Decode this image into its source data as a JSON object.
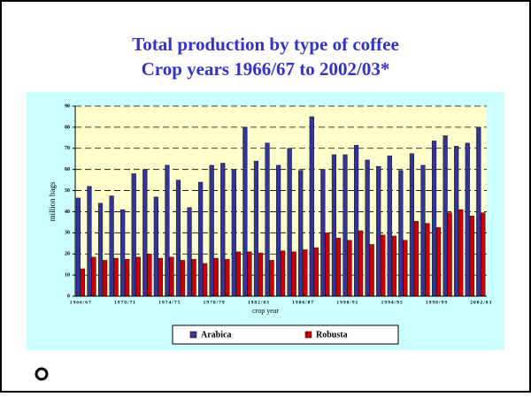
{
  "chart_data": {
    "type": "bar",
    "title": "Total production by type of coffee",
    "subtitle": "Crop years 1966/67 to 2002/03*",
    "x_label": "crop year",
    "y_label": "million bags",
    "categories": [
      "1966/67",
      null,
      null,
      null,
      "1970/71",
      null,
      null,
      null,
      "1974/75",
      null,
      null,
      null,
      "1978/79",
      null,
      null,
      null,
      "1982/83",
      null,
      null,
      null,
      "1986/87",
      null,
      null,
      null,
      "1990/91",
      null,
      null,
      null,
      "1994/95",
      null,
      null,
      null,
      "1998/99",
      null,
      null,
      null,
      "2002/03"
    ],
    "series": [
      {
        "name": "Arabica",
        "color": "#333399",
        "values": [
          46.5,
          52,
          44,
          47.5,
          41,
          58,
          60,
          47,
          62,
          55,
          42,
          54,
          62,
          63,
          60,
          80,
          64,
          72.5,
          62,
          70,
          59.5,
          85,
          60,
          67,
          67,
          71.5,
          64.5,
          61.5,
          66.5,
          59.5,
          67.5,
          62,
          73.5,
          76,
          71,
          72.5,
          80
        ]
      },
      {
        "name": "Robusta",
        "color": "#cc0000",
        "values": [
          13,
          18.5,
          17,
          18,
          17.5,
          18.5,
          20,
          18,
          18.5,
          17,
          17.5,
          15.5,
          18,
          17.5,
          21,
          21,
          20.5,
          17,
          21.5,
          21,
          22,
          23,
          30,
          27.5,
          26.5,
          31,
          24.5,
          29,
          28.5,
          26.5,
          35.5,
          34.5,
          32.5,
          39.5,
          41,
          38,
          39.5
        ]
      }
    ],
    "ylim": [
      0,
      90
    ],
    "yticks": [
      0,
      10,
      20,
      30,
      40,
      50,
      60,
      70,
      80,
      90
    ],
    "grid": true,
    "legend": "bottom"
  }
}
